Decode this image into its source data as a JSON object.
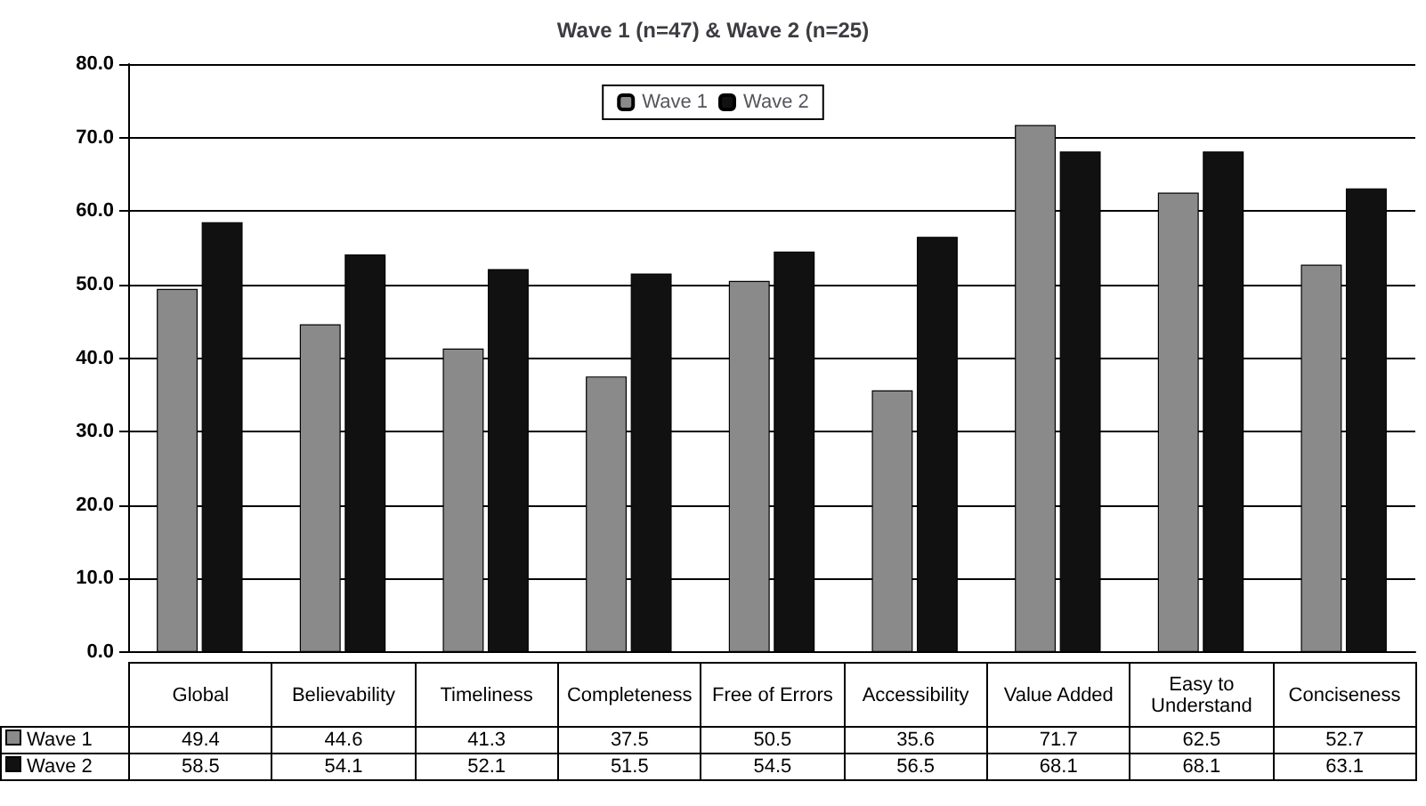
{
  "chart_data": {
    "type": "bar",
    "title": "Wave 1 (n=47) & Wave 2 (n=25)",
    "categories": [
      "Global",
      "Believability",
      "Timeliness",
      "Completeness",
      "Free of Errors",
      "Accessibility",
      "Value Added",
      "Easy to Understand",
      "Conciseness"
    ],
    "series": [
      {
        "name": "Wave 1",
        "color": "#8a8a8a",
        "values": [
          49.4,
          44.6,
          41.3,
          37.5,
          50.5,
          35.6,
          71.7,
          62.5,
          52.7
        ]
      },
      {
        "name": "Wave 2",
        "color": "#111111",
        "values": [
          58.5,
          54.1,
          52.1,
          51.5,
          54.5,
          56.5,
          68.1,
          68.1,
          63.1
        ]
      }
    ],
    "ylim": [
      0,
      80
    ],
    "yticks": [
      {
        "value": 0,
        "label": "0.0"
      },
      {
        "value": 10,
        "label": "10.0"
      },
      {
        "value": 20,
        "label": "20.0"
      },
      {
        "value": 30,
        "label": "30.0"
      },
      {
        "value": 40,
        "label": "40.0"
      },
      {
        "value": 50,
        "label": "50.0"
      },
      {
        "value": 60,
        "label": "60.0"
      },
      {
        "value": 70,
        "label": "70.0"
      },
      {
        "value": 80,
        "label": "80.0"
      }
    ],
    "grid": "y",
    "legend": "top",
    "data_labels": true
  }
}
